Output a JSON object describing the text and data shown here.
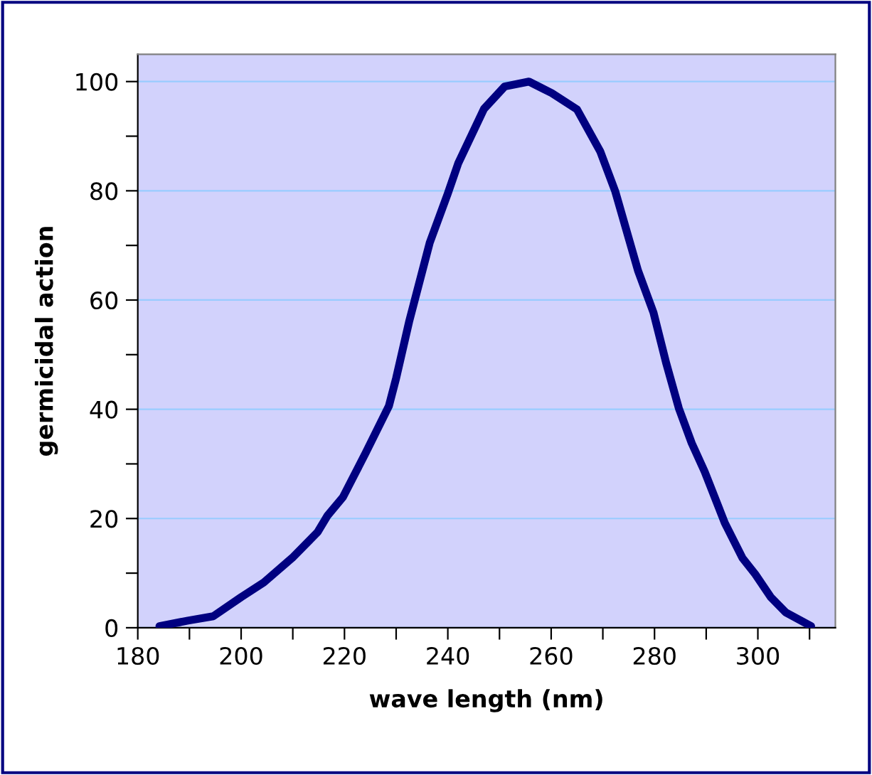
{
  "chart_data": {
    "type": "line",
    "xlabel": "wave length (nm)",
    "ylabel": "germicidal action",
    "x": [
      184.2,
      189.7,
      194.6,
      200,
      204.4,
      209.9,
      214.8,
      216.7,
      219.7,
      224.1,
      228.6,
      230,
      232.5,
      236.5,
      240,
      242,
      247,
      251,
      255.7,
      260.1,
      265,
      269.5,
      272.4,
      276.8,
      279.8,
      282.3,
      284.7,
      287.2,
      289.7,
      293.6,
      297,
      299.5,
      302.5,
      305.4,
      310.3
    ],
    "series": [
      {
        "color": "#000080",
        "values": [
          0.3,
          1.3,
          2.1,
          5.6,
          8.3,
          12.8,
          17.5,
          20.5,
          23.9,
          32,
          40.6,
          45.7,
          56,
          70.5,
          79.5,
          85,
          95,
          99.1,
          100,
          97.9,
          94.9,
          87.2,
          79.9,
          65.4,
          57.7,
          48.3,
          40.2,
          33.8,
          28.6,
          19.2,
          12.8,
          9.8,
          5.6,
          2.8,
          0.3
        ]
      }
    ],
    "xlim": [
      180,
      315
    ],
    "ylim": [
      0,
      105
    ],
    "xticks": [
      180,
      {
        "value": 190,
        "label": null
      },
      200,
      {
        "value": 210,
        "label": null
      },
      220,
      {
        "value": 230,
        "label": null
      },
      240,
      {
        "value": 250,
        "label": null
      },
      260,
      {
        "value": 270,
        "label": null
      },
      280,
      {
        "value": 290,
        "label": null
      },
      300,
      {
        "value": 310,
        "label": null
      }
    ],
    "yticks": [
      0,
      {
        "value": 10,
        "label": null
      },
      20,
      {
        "value": 30,
        "label": null
      },
      40,
      {
        "value": 50,
        "label": null
      },
      60,
      {
        "value": 70,
        "label": null
      },
      80,
      {
        "value": 90,
        "label": null
      },
      100
    ],
    "grid": "y",
    "marker": "none",
    "line_style": "solid",
    "legend": false
  }
}
